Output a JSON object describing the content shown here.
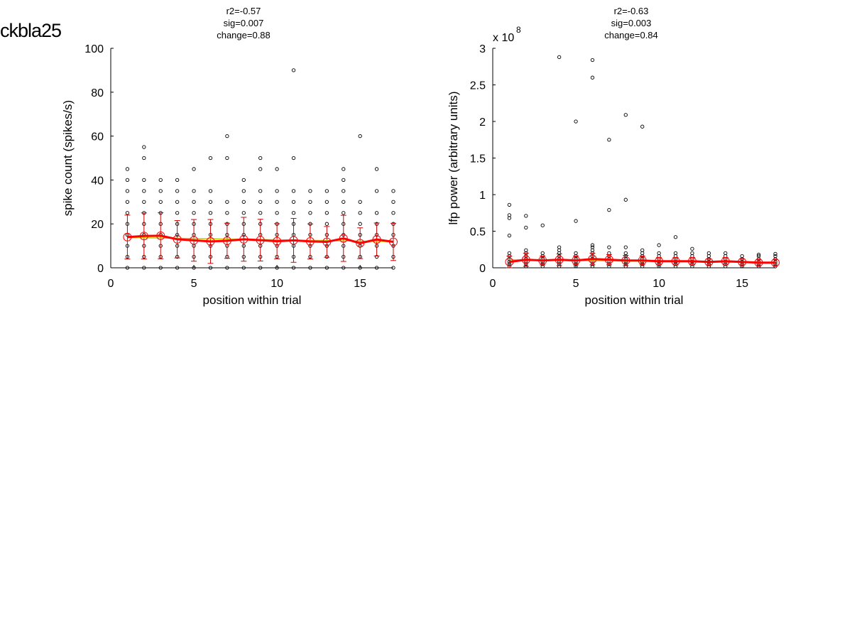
{
  "figure_title": "ckbla25",
  "colors": {
    "points": "#000000",
    "mean_line": "#ff0000",
    "error_bars": "#cc0000",
    "markers": "#ff0000",
    "fit_line": "#c8c800"
  },
  "chart_data": [
    {
      "type": "scatter",
      "title_lines": [
        "r2=-0.57",
        "sig=0.007",
        "change=0.88"
      ],
      "xlabel": "position within trial",
      "ylabel": "spike count (spikes/s)",
      "xlim": [
        0,
        17
      ],
      "ylim": [
        0,
        100
      ],
      "xticks": [
        0,
        5,
        10,
        15
      ],
      "yticks": [
        0,
        20,
        40,
        60,
        80,
        100
      ],
      "exponent_label": null,
      "grid": false,
      "points": [
        [
          1,
          0
        ],
        [
          1,
          5
        ],
        [
          1,
          10
        ],
        [
          1,
          15
        ],
        [
          1,
          20
        ],
        [
          1,
          25
        ],
        [
          1,
          30
        ],
        [
          1,
          35
        ],
        [
          1,
          40
        ],
        [
          1,
          45
        ],
        [
          2,
          0
        ],
        [
          2,
          5
        ],
        [
          2,
          10
        ],
        [
          2,
          15
        ],
        [
          2,
          20
        ],
        [
          2,
          25
        ],
        [
          2,
          30
        ],
        [
          2,
          35
        ],
        [
          2,
          40
        ],
        [
          2,
          50
        ],
        [
          2,
          55
        ],
        [
          3,
          0
        ],
        [
          3,
          5
        ],
        [
          3,
          10
        ],
        [
          3,
          15
        ],
        [
          3,
          20
        ],
        [
          3,
          25
        ],
        [
          3,
          30
        ],
        [
          3,
          35
        ],
        [
          3,
          40
        ],
        [
          4,
          0
        ],
        [
          4,
          5
        ],
        [
          4,
          10
        ],
        [
          4,
          15
        ],
        [
          4,
          20
        ],
        [
          4,
          25
        ],
        [
          4,
          30
        ],
        [
          4,
          35
        ],
        [
          4,
          40
        ],
        [
          5,
          0
        ],
        [
          5,
          5
        ],
        [
          5,
          10
        ],
        [
          5,
          15
        ],
        [
          5,
          20
        ],
        [
          5,
          25
        ],
        [
          5,
          30
        ],
        [
          5,
          35
        ],
        [
          5,
          45
        ],
        [
          6,
          0
        ],
        [
          6,
          5
        ],
        [
          6,
          10
        ],
        [
          6,
          15
        ],
        [
          6,
          20
        ],
        [
          6,
          25
        ],
        [
          6,
          30
        ],
        [
          6,
          35
        ],
        [
          6,
          50
        ],
        [
          7,
          0
        ],
        [
          7,
          5
        ],
        [
          7,
          10
        ],
        [
          7,
          15
        ],
        [
          7,
          20
        ],
        [
          7,
          25
        ],
        [
          7,
          30
        ],
        [
          7,
          50
        ],
        [
          7,
          60
        ],
        [
          8,
          0
        ],
        [
          8,
          5
        ],
        [
          8,
          10
        ],
        [
          8,
          15
        ],
        [
          8,
          20
        ],
        [
          8,
          25
        ],
        [
          8,
          30
        ],
        [
          8,
          35
        ],
        [
          8,
          40
        ],
        [
          9,
          0
        ],
        [
          9,
          5
        ],
        [
          9,
          10
        ],
        [
          9,
          15
        ],
        [
          9,
          20
        ],
        [
          9,
          25
        ],
        [
          9,
          30
        ],
        [
          9,
          35
        ],
        [
          9,
          45
        ],
        [
          9,
          50
        ],
        [
          10,
          0
        ],
        [
          10,
          5
        ],
        [
          10,
          10
        ],
        [
          10,
          15
        ],
        [
          10,
          20
        ],
        [
          10,
          25
        ],
        [
          10,
          30
        ],
        [
          10,
          35
        ],
        [
          10,
          45
        ],
        [
          11,
          0
        ],
        [
          11,
          5
        ],
        [
          11,
          10
        ],
        [
          11,
          15
        ],
        [
          11,
          20
        ],
        [
          11,
          25
        ],
        [
          11,
          30
        ],
        [
          11,
          35
        ],
        [
          11,
          50
        ],
        [
          11,
          90
        ],
        [
          12,
          0
        ],
        [
          12,
          5
        ],
        [
          12,
          10
        ],
        [
          12,
          15
        ],
        [
          12,
          20
        ],
        [
          12,
          25
        ],
        [
          12,
          30
        ],
        [
          12,
          35
        ],
        [
          13,
          0
        ],
        [
          13,
          5
        ],
        [
          13,
          10
        ],
        [
          13,
          15
        ],
        [
          13,
          20
        ],
        [
          13,
          25
        ],
        [
          13,
          30
        ],
        [
          13,
          35
        ],
        [
          14,
          0
        ],
        [
          14,
          5
        ],
        [
          14,
          10
        ],
        [
          14,
          15
        ],
        [
          14,
          20
        ],
        [
          14,
          25
        ],
        [
          14,
          30
        ],
        [
          14,
          35
        ],
        [
          14,
          40
        ],
        [
          14,
          45
        ],
        [
          15,
          0
        ],
        [
          15,
          5
        ],
        [
          15,
          10
        ],
        [
          15,
          15
        ],
        [
          15,
          20
        ],
        [
          15,
          25
        ],
        [
          15,
          30
        ],
        [
          15,
          60
        ],
        [
          16,
          0
        ],
        [
          16,
          5
        ],
        [
          16,
          10
        ],
        [
          16,
          15
        ],
        [
          16,
          20
        ],
        [
          16,
          25
        ],
        [
          16,
          35
        ],
        [
          16,
          45
        ],
        [
          17,
          0
        ],
        [
          17,
          5
        ],
        [
          17,
          10
        ],
        [
          17,
          15
        ],
        [
          17,
          20
        ],
        [
          17,
          25
        ],
        [
          17,
          30
        ],
        [
          17,
          35
        ]
      ],
      "means": [
        14,
        14.5,
        14.6,
        13,
        12.5,
        12,
        12.3,
        13,
        12.6,
        12.1,
        12.5,
        12,
        11.8,
        13.4,
        11.2,
        12.9,
        11.8
      ],
      "errors": [
        10,
        10.5,
        10.5,
        8.5,
        9.5,
        10,
        8,
        10,
        9.5,
        8,
        10,
        8,
        7,
        10.5,
        7,
        7.5,
        8.5
      ],
      "fit": {
        "x": [
          1,
          17
        ],
        "y": [
          13.8,
          11.9
        ]
      }
    },
    {
      "type": "scatter",
      "title_lines": [
        "r2=-0.63",
        "sig=0.003",
        "change=0.84"
      ],
      "xlabel": "position within trial",
      "ylabel": "lfp power (arbitrary units)",
      "xlim": [
        0,
        17
      ],
      "ylim": [
        0,
        3
      ],
      "xticks": [
        0,
        5,
        10,
        15
      ],
      "yticks": [
        0,
        0.5,
        1,
        1.5,
        2,
        2.5,
        3
      ],
      "exponent_label": "x 10",
      "exponent_power": "8",
      "grid": false,
      "points": [
        [
          1,
          0.02
        ],
        [
          1,
          0.05
        ],
        [
          1,
          0.08
        ],
        [
          1,
          0.12
        ],
        [
          1,
          0.16
        ],
        [
          1,
          0.2
        ],
        [
          1,
          0.44
        ],
        [
          1,
          0.68
        ],
        [
          1,
          0.72
        ],
        [
          1,
          0.86
        ],
        [
          2,
          0.02
        ],
        [
          2,
          0.05
        ],
        [
          2,
          0.08
        ],
        [
          2,
          0.12
        ],
        [
          2,
          0.16
        ],
        [
          2,
          0.2
        ],
        [
          2,
          0.24
        ],
        [
          2,
          0.55
        ],
        [
          2,
          0.71
        ],
        [
          3,
          0.02
        ],
        [
          3,
          0.05
        ],
        [
          3,
          0.08
        ],
        [
          3,
          0.12
        ],
        [
          3,
          0.16
        ],
        [
          3,
          0.2
        ],
        [
          3,
          0.58
        ],
        [
          4,
          0.02
        ],
        [
          4,
          0.05
        ],
        [
          4,
          0.08
        ],
        [
          4,
          0.12
        ],
        [
          4,
          0.16
        ],
        [
          4,
          0.2
        ],
        [
          4,
          0.24
        ],
        [
          4,
          0.28
        ],
        [
          4,
          2.88
        ],
        [
          5,
          0.02
        ],
        [
          5,
          0.05
        ],
        [
          5,
          0.08
        ],
        [
          5,
          0.12
        ],
        [
          5,
          0.16
        ],
        [
          5,
          0.2
        ],
        [
          5,
          0.64
        ],
        [
          5,
          2.0
        ],
        [
          6,
          0.02
        ],
        [
          6,
          0.05
        ],
        [
          6,
          0.08
        ],
        [
          6,
          0.12
        ],
        [
          6,
          0.16
        ],
        [
          6,
          0.2
        ],
        [
          6,
          0.24
        ],
        [
          6,
          0.28
        ],
        [
          6,
          0.31
        ],
        [
          6,
          2.6
        ],
        [
          6,
          2.84
        ],
        [
          7,
          0.02
        ],
        [
          7,
          0.05
        ],
        [
          7,
          0.08
        ],
        [
          7,
          0.12
        ],
        [
          7,
          0.16
        ],
        [
          7,
          0.2
        ],
        [
          7,
          0.28
        ],
        [
          7,
          0.79
        ],
        [
          7,
          1.75
        ],
        [
          8,
          0.02
        ],
        [
          8,
          0.05
        ],
        [
          8,
          0.08
        ],
        [
          8,
          0.12
        ],
        [
          8,
          0.16
        ],
        [
          8,
          0.2
        ],
        [
          8,
          0.28
        ],
        [
          8,
          0.93
        ],
        [
          8,
          2.09
        ],
        [
          9,
          0.02
        ],
        [
          9,
          0.05
        ],
        [
          9,
          0.08
        ],
        [
          9,
          0.12
        ],
        [
          9,
          0.16
        ],
        [
          9,
          0.2
        ],
        [
          9,
          0.24
        ],
        [
          9,
          1.93
        ],
        [
          10,
          0.02
        ],
        [
          10,
          0.05
        ],
        [
          10,
          0.08
        ],
        [
          10,
          0.12
        ],
        [
          10,
          0.16
        ],
        [
          10,
          0.2
        ],
        [
          10,
          0.31
        ],
        [
          11,
          0.02
        ],
        [
          11,
          0.05
        ],
        [
          11,
          0.08
        ],
        [
          11,
          0.12
        ],
        [
          11,
          0.16
        ],
        [
          11,
          0.2
        ],
        [
          11,
          0.42
        ],
        [
          12,
          0.02
        ],
        [
          12,
          0.05
        ],
        [
          12,
          0.08
        ],
        [
          12,
          0.12
        ],
        [
          12,
          0.16
        ],
        [
          12,
          0.2
        ],
        [
          12,
          0.26
        ],
        [
          13,
          0.02
        ],
        [
          13,
          0.05
        ],
        [
          13,
          0.08
        ],
        [
          13,
          0.12
        ],
        [
          13,
          0.16
        ],
        [
          13,
          0.2
        ],
        [
          14,
          0.02
        ],
        [
          14,
          0.05
        ],
        [
          14,
          0.08
        ],
        [
          14,
          0.12
        ],
        [
          14,
          0.16
        ],
        [
          14,
          0.2
        ],
        [
          15,
          0.02
        ],
        [
          15,
          0.05
        ],
        [
          15,
          0.08
        ],
        [
          15,
          0.12
        ],
        [
          15,
          0.16
        ],
        [
          16,
          0.02
        ],
        [
          16,
          0.05
        ],
        [
          16,
          0.08
        ],
        [
          16,
          0.12
        ],
        [
          16,
          0.16
        ],
        [
          16,
          0.18
        ],
        [
          17,
          0.02
        ],
        [
          17,
          0.05
        ],
        [
          17,
          0.08
        ],
        [
          17,
          0.12
        ],
        [
          17,
          0.16
        ],
        [
          17,
          0.19
        ]
      ],
      "means": [
        0.08,
        0.11,
        0.1,
        0.11,
        0.1,
        0.12,
        0.11,
        0.1,
        0.1,
        0.09,
        0.09,
        0.09,
        0.08,
        0.09,
        0.08,
        0.07,
        0.07
      ],
      "errors": [
        0.08,
        0.09,
        0.06,
        0.08,
        0.06,
        0.08,
        0.07,
        0.07,
        0.06,
        0.05,
        0.05,
        0.05,
        0.04,
        0.05,
        0.04,
        0.04,
        0.04
      ],
      "fit": {
        "x": [
          1,
          17
        ],
        "y": [
          0.11,
          0.07
        ]
      }
    }
  ]
}
